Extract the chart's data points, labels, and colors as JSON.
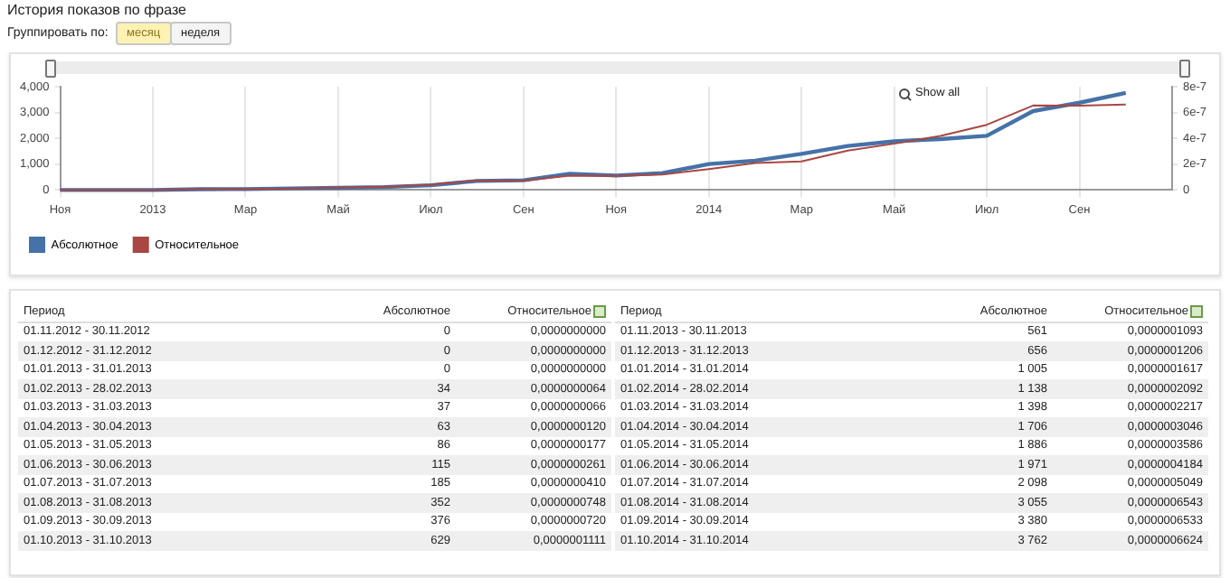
{
  "chart_data": [
    {
      "type": "line",
      "title": "История показов по фразе",
      "x": [
        "2012-11",
        "2012-12",
        "2013-01",
        "2013-02",
        "2013-03",
        "2013-04",
        "2013-05",
        "2013-06",
        "2013-07",
        "2013-08",
        "2013-09",
        "2013-10",
        "2013-11",
        "2013-12",
        "2014-01",
        "2014-02",
        "2014-03",
        "2014-04",
        "2014-05",
        "2014-06",
        "2014-07",
        "2014-08",
        "2014-09",
        "2014-10"
      ],
      "xlim": [
        "2012-11",
        "2014-11"
      ],
      "xticks": [
        {
          "value": "2012-11",
          "label": "Ноя"
        },
        {
          "value": "2013-01",
          "label": "2013"
        },
        {
          "value": "2013-03",
          "label": "Мар"
        },
        {
          "value": "2013-05",
          "label": "Май"
        },
        {
          "value": "2013-07",
          "label": "Июл"
        },
        {
          "value": "2013-09",
          "label": "Сен"
        },
        {
          "value": "2013-11",
          "label": "Ноя"
        },
        {
          "value": "2014-01",
          "label": "2014"
        },
        {
          "value": "2014-03",
          "label": "Мар"
        },
        {
          "value": "2014-05",
          "label": "Май"
        },
        {
          "value": "2014-07",
          "label": "Июл"
        },
        {
          "value": "2014-09",
          "label": "Сен"
        }
      ],
      "ylim": [
        0,
        4000
      ],
      "yticks": [
        0,
        {
          "value": 1000,
          "label": "1,000"
        },
        {
          "value": 2000,
          "label": "2,000"
        },
        {
          "value": 3000,
          "label": "3,000"
        },
        {
          "value": 4000,
          "label": "4,000"
        }
      ],
      "y2lim": [
        0,
        8e-07
      ],
      "y2ticks": [
        0,
        {
          "value": 2e-07,
          "label": "2e-7"
        },
        {
          "value": 4e-07,
          "label": "4e-7"
        },
        {
          "value": 6e-07,
          "label": "6e-7"
        },
        {
          "value": 8e-07,
          "label": "8e-7"
        }
      ],
      "grid": "x",
      "legend": "bottom left",
      "marker": "none",
      "line_style": "solid",
      "series": [
        {
          "name": "Абсолютное",
          "color": "#4572a7",
          "values": [
            0,
            0,
            0,
            34,
            37,
            63,
            86,
            115,
            185,
            352,
            376,
            629,
            561,
            656,
            1005,
            1138,
            1398,
            1706,
            1886,
            1971,
            2098,
            3055,
            3380,
            3762
          ]
        },
        {
          "name": "Относительное",
          "color": "#aa4643",
          "axis": "y2",
          "values": [
            0,
            0,
            0,
            6.4e-09,
            6.6e-09,
            1.2e-08,
            1.77e-08,
            2.61e-08,
            4.1e-08,
            7.48e-08,
            7.2e-08,
            1.111e-07,
            1.093e-07,
            1.206e-07,
            1.617e-07,
            2.092e-07,
            2.217e-07,
            3.046e-07,
            3.586e-07,
            4.184e-07,
            5.049e-07,
            6.543e-07,
            6.533e-07,
            6.624e-07
          ]
        }
      ],
      "annotations": [
        "Группировать по:",
        "месяц",
        "неделя",
        "Show all"
      ]
    },
    {
      "type": "other",
      "annotations": [
        "Период",
        "Абсолютное",
        "Относительное",
        "01.11.2012 - 30.11.2012",
        "0",
        "0,0000000000",
        "01.12.2012 - 31.12.2012",
        "0",
        "0,0000000000",
        "01.01.2013 - 31.01.2013",
        "0",
        "0,0000000000",
        "01.02.2013 - 28.02.2013",
        "34",
        "0,0000000064",
        "01.03.2013 - 31.03.2013",
        "37",
        "0,0000000066",
        "01.04.2013 - 30.04.2013",
        "63",
        "0,0000000120",
        "01.05.2013 - 31.05.2013",
        "86",
        "0,0000000177",
        "01.06.2013 - 30.06.2013",
        "115",
        "0,0000000261",
        "01.07.2013 - 31.07.2013",
        "185",
        "0,0000000410",
        "01.08.2013 - 31.08.2013",
        "352",
        "0,0000000748",
        "01.09.2013 - 30.09.2013",
        "376",
        "0,0000000720",
        "01.10.2013 - 31.10.2013",
        "629",
        "0,0000001111",
        "Период",
        "Абсолютное",
        "Относительное",
        "01.11.2013 - 30.11.2013",
        "561",
        "0,0000001093",
        "01.12.2013 - 31.12.2013",
        "656",
        "0,0000001206",
        "01.01.2014 - 31.01.2014",
        "1 005",
        "0,0000001617",
        "01.02.2014 - 28.02.2014",
        "1 138",
        "0,0000002092",
        "01.03.2014 - 31.03.2014",
        "1 398",
        "0,0000002217",
        "01.04.2014 - 30.04.2014",
        "1 706",
        "0,0000003046",
        "01.05.2014 - 31.05.2014",
        "1 886",
        "0,0000003586",
        "01.06.2014 - 30.06.2014",
        "1 971",
        "0,0000004184",
        "01.07.2014 - 31.07.2014",
        "2 098",
        "0,0000005049",
        "01.08.2014 - 31.08.2014",
        "3 055",
        "0,0000006543",
        "01.09.2014 - 30.09.2014",
        "3 380",
        "0,0000006533",
        "01.10.2014 - 31.10.2014",
        "3 762",
        "0,0000006624"
      ]
    }
  ]
}
